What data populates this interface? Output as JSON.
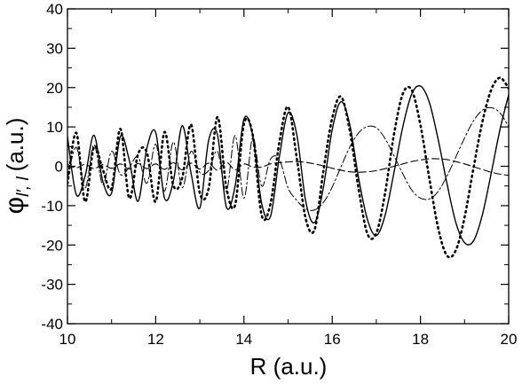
{
  "chart_data": {
    "type": "line",
    "xlabel": "R (a.u.)",
    "ylabel_main": "φ",
    "ylabel_sub": "l′, l",
    "ylabel_units": "(a.u.)",
    "xlim": [
      10,
      20
    ],
    "ylim": [
      -40,
      40
    ],
    "x_ticks": [
      10,
      12,
      14,
      16,
      18,
      20
    ],
    "y_ticks": [
      -40,
      -30,
      -20,
      -10,
      0,
      10,
      20,
      30,
      40
    ],
    "grid": false,
    "legend": "none",
    "series": [
      {
        "style": "solid",
        "x": [
          10.0,
          10.2,
          10.4,
          10.6,
          10.8,
          11.0,
          11.2,
          11.4,
          11.6,
          11.8,
          12.0,
          12.2,
          12.4,
          12.6,
          12.8,
          13.0,
          13.2,
          13.4,
          13.6,
          13.8,
          14.0,
          14.2,
          14.4,
          14.6,
          14.8,
          15.0,
          15.2,
          15.4,
          15.6,
          15.8,
          16.0,
          16.2,
          16.4,
          16.6,
          16.8,
          17.0,
          17.2,
          17.4,
          17.6,
          17.8,
          18.0,
          18.2,
          18.4,
          18.6,
          18.8,
          19.0,
          19.2,
          19.4,
          19.6,
          19.8,
          20.0
        ],
        "y": [
          7.5,
          -7.2,
          -2.5,
          7.9,
          -3.8,
          -6.8,
          7.6,
          1.6,
          -8.9,
          4.6,
          8.6,
          -8.1,
          -3.8,
          10.3,
          -1.7,
          -10.6,
          6.6,
          8.0,
          -10.3,
          -5.0,
          12.0,
          7.7,
          -9.4,
          -12.8,
          2.2,
          13.6,
          7.9,
          -8.9,
          -14.3,
          -5.4,
          9.3,
          16.4,
          10.5,
          -3.1,
          -13.6,
          -17.6,
          -12.4,
          -1.6,
          10.0,
          18.3,
          20.4,
          16.3,
          6.9,
          -4.3,
          -14.2,
          -19.4,
          -19.0,
          -12.5,
          -2.0,
          9.2,
          18.2
        ]
      },
      {
        "style": "dotted",
        "x": [
          10.0,
          10.2,
          10.4,
          10.6,
          10.8,
          11.0,
          11.2,
          11.4,
          11.6,
          11.8,
          12.0,
          12.2,
          12.4,
          12.6,
          12.8,
          13.0,
          13.2,
          13.4,
          13.6,
          13.8,
          14.0,
          14.2,
          14.4,
          14.6,
          14.8,
          15.0,
          15.2,
          15.4,
          15.6,
          15.8,
          16.0,
          16.2,
          16.4,
          16.6,
          16.8,
          17.0,
          17.2,
          17.4,
          17.6,
          17.8,
          18.0,
          18.2,
          18.4,
          18.6,
          18.8,
          19.0,
          19.2,
          19.4,
          19.6,
          19.8,
          20.0
        ],
        "y": [
          -4.4,
          8.5,
          -9.0,
          4.9,
          -0.8,
          -5.6,
          9.5,
          -8.1,
          3.1,
          3.5,
          -9.0,
          8.7,
          -4.9,
          -3.0,
          10.6,
          -6.8,
          -5.6,
          12.5,
          -5.3,
          -9.8,
          10.8,
          7.9,
          -12.4,
          -9.6,
          5.9,
          15.1,
          1.9,
          -13.3,
          -16.1,
          -1.2,
          12.2,
          17.7,
          9.0,
          -5.9,
          -17.2,
          -17.0,
          -6.7,
          8.1,
          18.4,
          19.4,
          10.5,
          -3.0,
          -15.6,
          -22.7,
          -21.4,
          -13.0,
          -0.6,
          11.1,
          19.3,
          22.5,
          19.8
        ]
      },
      {
        "style": "dash-dot",
        "x": [
          10.0,
          10.2,
          10.4,
          10.6,
          10.8,
          11.0,
          11.2,
          11.4,
          11.6,
          11.8,
          12.0,
          12.2,
          12.4,
          12.6,
          12.8,
          13.0,
          13.2,
          13.4,
          13.6,
          13.8,
          14.0,
          14.2,
          14.4,
          14.6,
          14.8,
          15.0,
          15.2,
          15.4,
          15.6,
          15.8,
          16.0,
          16.2,
          16.4,
          16.6,
          16.8,
          17.0,
          17.2,
          17.4,
          17.6,
          17.8,
          18.0,
          18.2,
          18.4,
          18.6,
          18.8,
          19.0,
          19.2,
          19.4,
          19.6,
          19.8,
          20.0
        ],
        "y": [
          -3.2,
          4.8,
          -5.5,
          5.5,
          -4.7,
          3.8,
          -2.1,
          -0.3,
          2.4,
          -4.3,
          5.6,
          -6.3,
          6.2,
          -5.4,
          3.8,
          -1.6,
          -1.1,
          3.8,
          -6.4,
          7.8,
          -8.1,
          7.3,
          -5.0,
          1.8,
          1.8,
          -5.5,
          -8.7,
          -10.8,
          -11.1,
          -9.2,
          -5.3,
          -0.1,
          4.9,
          8.5,
          10.1,
          9.8,
          7.0,
          2.7,
          -1.9,
          -6.0,
          -8.1,
          -8.3,
          -6.4,
          -2.5,
          2.3,
          7.2,
          11.5,
          14.2,
          14.9,
          13.6,
          10.1
        ]
      },
      {
        "style": "dashed",
        "x": [
          10.0,
          10.2,
          10.4,
          10.6,
          10.8,
          11.0,
          11.2,
          11.4,
          11.6,
          11.8,
          12.0,
          12.2,
          12.4,
          12.6,
          12.8,
          13.0,
          13.2,
          13.4,
          13.6,
          13.8,
          14.0,
          14.2,
          14.4,
          14.6,
          14.8,
          15.0,
          15.2,
          15.4,
          15.6,
          15.8,
          16.0,
          16.2,
          16.4,
          16.6,
          16.8,
          17.0,
          17.2,
          17.4,
          17.6,
          17.8,
          18.0,
          18.2,
          18.4,
          18.6,
          18.8,
          19.0,
          19.2,
          19.4,
          19.6,
          19.8,
          20.0
        ],
        "y": [
          0.5,
          -0.4,
          0.5,
          -0.6,
          0.4,
          -0.5,
          0.6,
          -0.7,
          0.7,
          -0.6,
          0.6,
          -0.8,
          0.9,
          -0.9,
          0.8,
          -0.7,
          0.8,
          -1.0,
          1.0,
          -0.9,
          0.6,
          -0.2,
          -0.2,
          0.6,
          0.9,
          1.1,
          1.2,
          1.0,
          0.6,
          0.1,
          -0.5,
          -1.0,
          -1.4,
          -1.5,
          -1.4,
          -1.1,
          -0.6,
          0.0,
          0.6,
          1.2,
          1.6,
          1.9,
          1.9,
          1.7,
          1.2,
          0.6,
          -0.1,
          -0.8,
          -1.5,
          -2.0,
          -2.3
        ]
      }
    ]
  }
}
